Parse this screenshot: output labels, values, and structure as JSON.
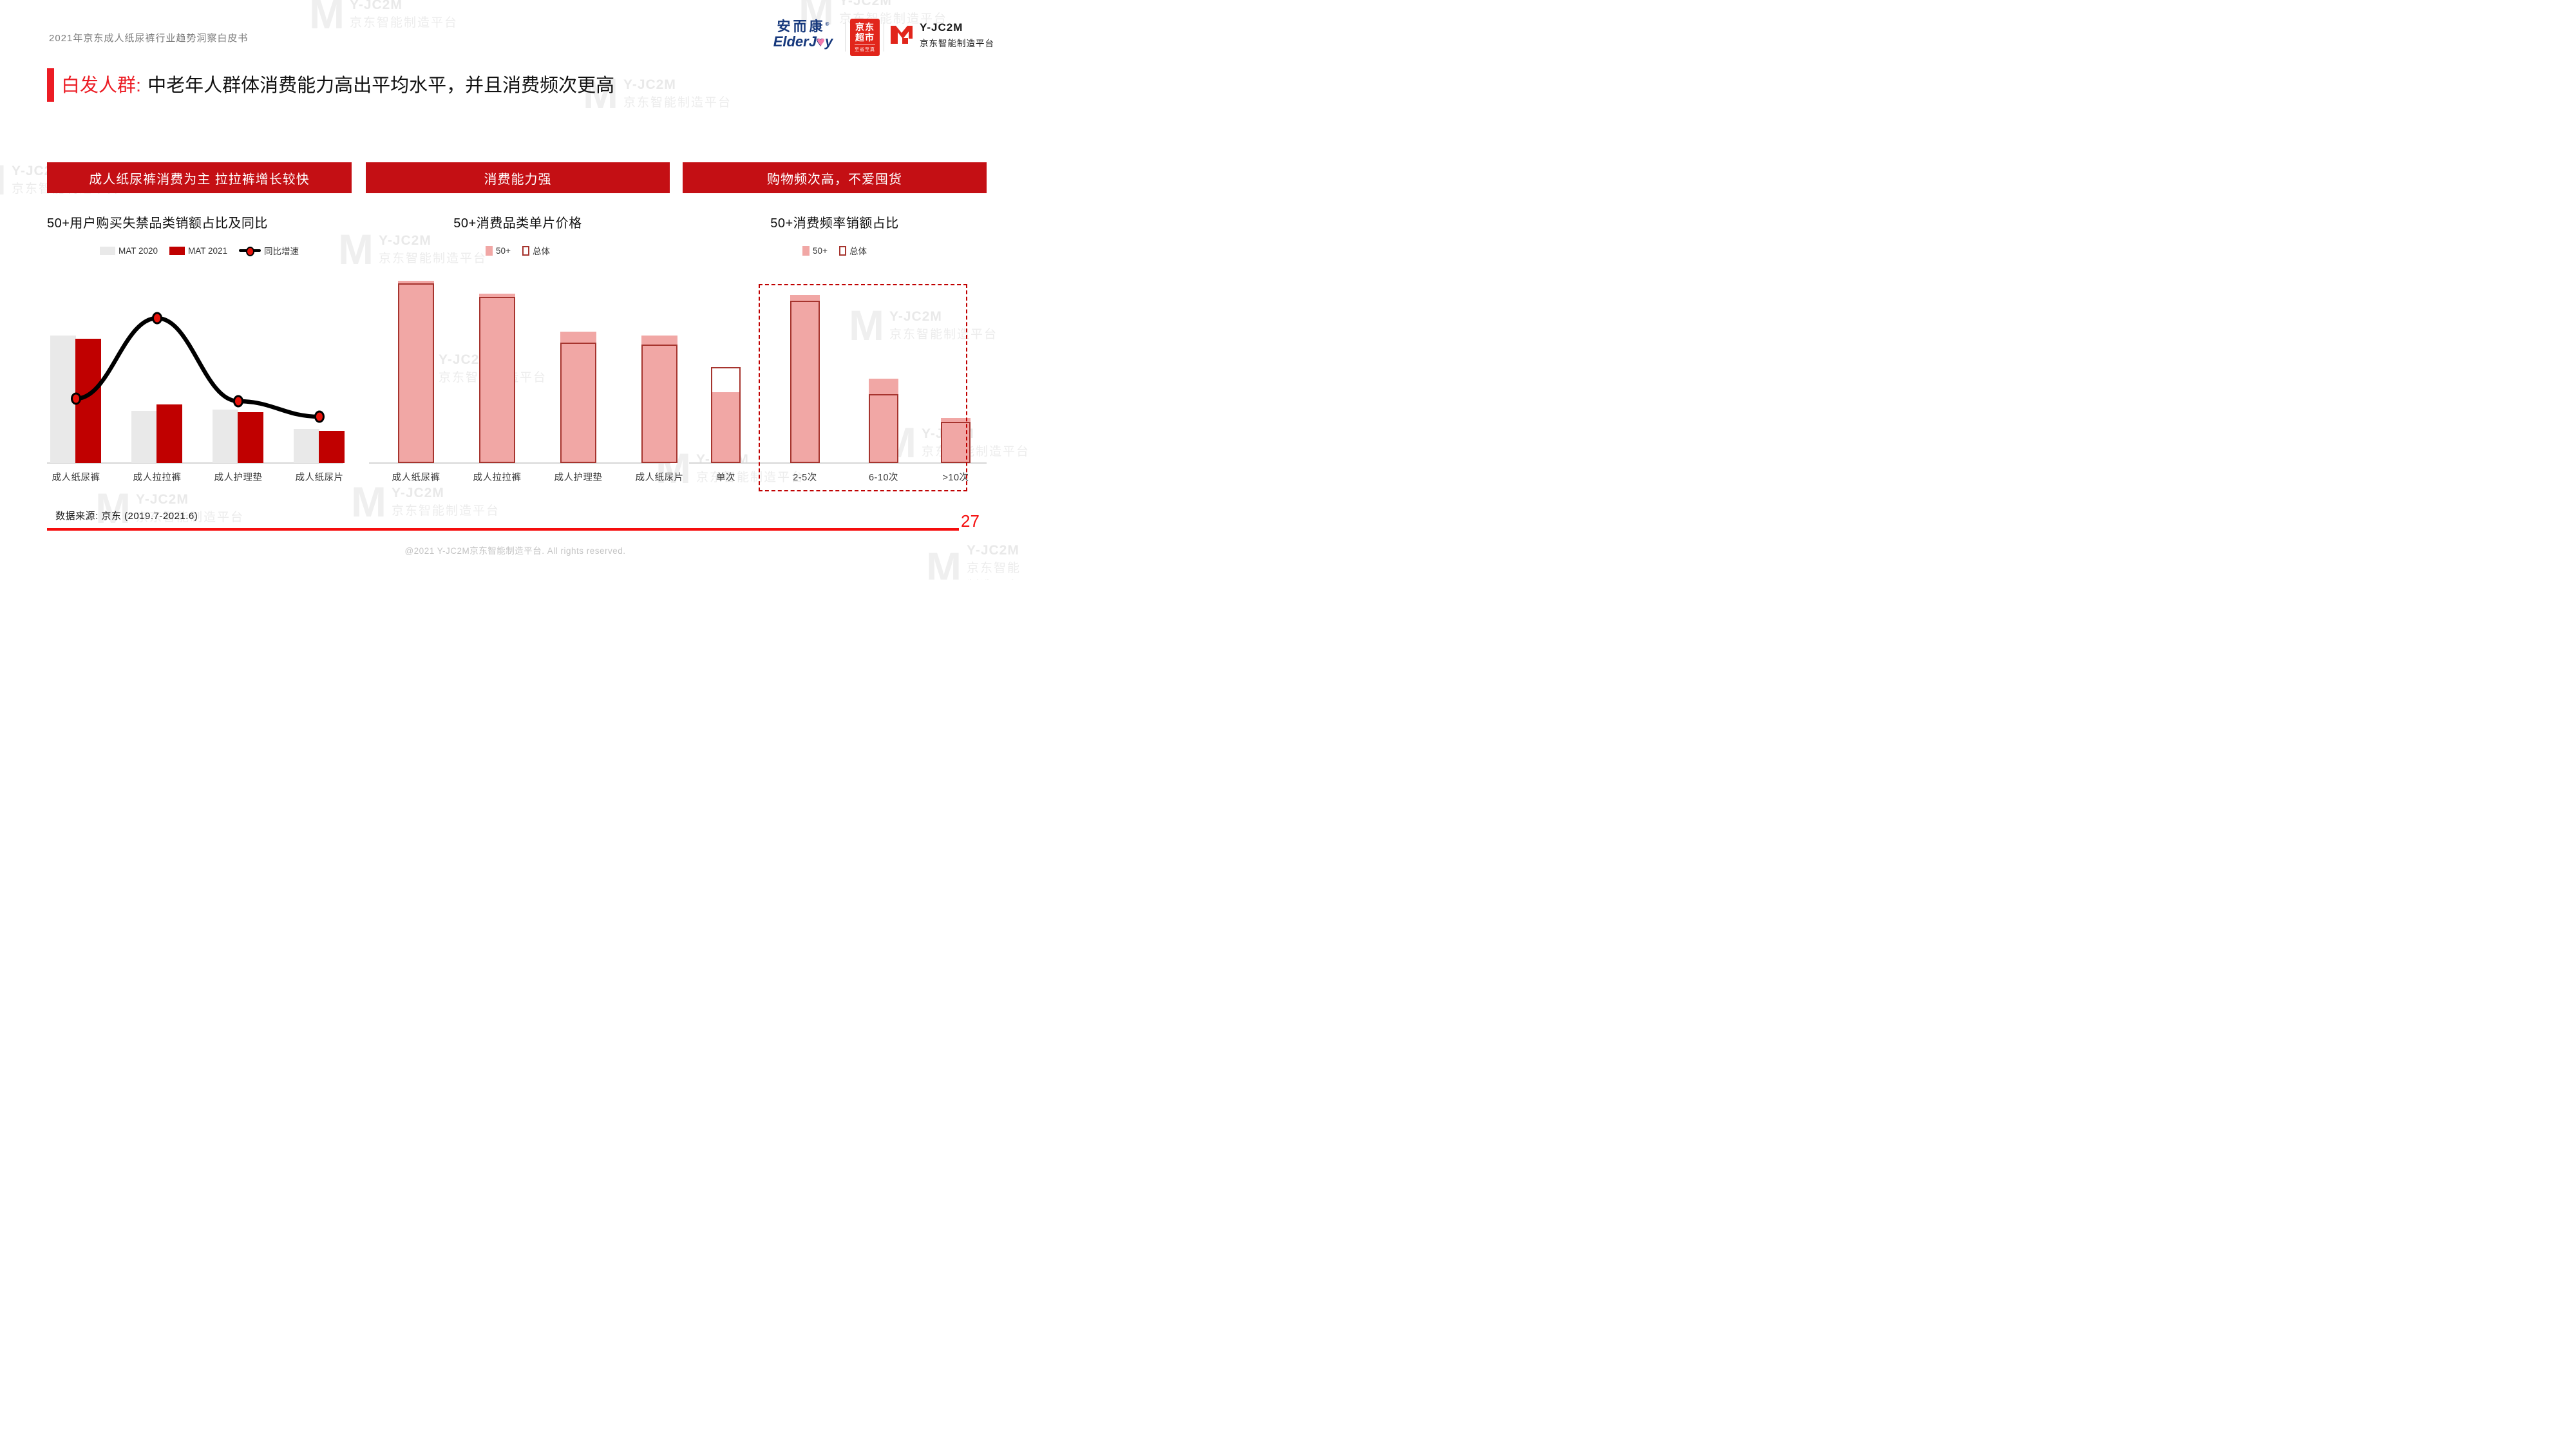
{
  "header": {
    "doc_title": "2021年京东成人纸尿裤行业趋势洞察白皮书",
    "logos": {
      "elderjoy": {
        "cn": "安而康",
        "reg": "®",
        "en_pre": "ElderJ",
        "en_heart": "♥",
        "en_post": "y"
      },
      "jd_market": {
        "line1": "京东",
        "line2": "超市",
        "sub": "至省至真"
      },
      "yjc2m": {
        "name": "Y-JC2M",
        "sub": "京东智能制造平台"
      }
    }
  },
  "headline": {
    "tag": "白发人群:",
    "text": "中老年人群体消费能力高出平均水平，并且消费频次更高"
  },
  "sections": [
    {
      "banner": "成人纸尿裤消费为主 拉拉裤增长较快"
    },
    {
      "banner": "消费能力强"
    },
    {
      "banner": "购物频次高，不爱囤货"
    }
  ],
  "chart_data": [
    {
      "type": "bar",
      "subtype": "grouped bars + smooth growth line",
      "title": "50+用户购买失禁品类销额占比及同比",
      "categories": [
        "成人纸尿裤",
        "成人拉拉裤",
        "成人护理垫",
        "成人纸尿片"
      ],
      "series": [
        {
          "name": "MAT 2020",
          "swatch": "rect",
          "color": "#e9e9e9",
          "values_rel_pct": [
            100,
            41,
            42,
            27
          ]
        },
        {
          "name": "MAT 2021",
          "swatch": "rect",
          "color": "#c00000",
          "values_rel_pct": [
            97.5,
            46,
            40,
            25
          ]
        }
      ],
      "line_series": {
        "name": "同比增速",
        "color": "#000000",
        "marker_color": "#e8130b",
        "values_rel_pct": [
          51,
          114,
          49,
          37
        ]
      },
      "value_axis_labels": "none shown — values are relative heights (% of tallest MAT 2020 bar)",
      "legend_position": "top-center",
      "grid": false
    },
    {
      "type": "bar",
      "subtype": "filled 50+ bars overlaid by outlined 总体 bars",
      "title": "50+消费品类单片价格",
      "categories": [
        "成人纸尿裤",
        "成人拉拉裤",
        "成人护理垫",
        "成人纸尿片"
      ],
      "series": [
        {
          "name": "50+",
          "style": "filled",
          "color": "#f1a7a5",
          "values_rel_pct": [
            100,
            93,
            72,
            70
          ]
        },
        {
          "name": "总体",
          "style": "outline",
          "color": "#a6342e",
          "values_rel_pct": [
            98.5,
            91,
            66,
            65
          ]
        }
      ],
      "value_axis_labels": "none shown — values are relative heights (% of tallest 50+ bar)",
      "legend_position": "top-center",
      "grid": false
    },
    {
      "type": "bar",
      "subtype": "filled 50+ bars overlaid by outlined 总体 bars",
      "title": "50+消费频率销额占比",
      "categories": [
        "单次",
        "2-5次",
        "6-10次",
        ">10次"
      ],
      "series": [
        {
          "name": "50+",
          "style": "filled",
          "color": "#f1a7a5",
          "values_rel_pct": [
            42,
            100,
            50,
            27
          ]
        },
        {
          "name": "总体",
          "style": "outline",
          "color": "#a6342e",
          "values_rel_pct": [
            57,
            96.5,
            41,
            24.5
          ]
        }
      ],
      "annotation": {
        "highlight_box": "dashed red rectangle around 2-5次, 6-10次, >10次"
      },
      "value_axis_labels": "none shown — values are relative heights (% of tallest 50+ bar)",
      "legend_position": "top-center",
      "grid": false
    }
  ],
  "footer": {
    "data_source": "数据来源: 京东 (2019.7-2021.6)",
    "page_number": "27",
    "copyright": "@2021 Y-JC2M京东智能制造平台. All rights reserved."
  },
  "watermark": {
    "brand": "Y-JC2M",
    "sub": "京东智能制造平台"
  },
  "colors": {
    "banner_red": "#c40f14",
    "accent_red": "#ec1c24",
    "footer_line_red": "#f50d0d",
    "bar_red": "#c00000",
    "bar_gray": "#e9e9e9",
    "bar_pink": "#f1a7a5",
    "bar_outline_red": "#a6342e",
    "jd_logo_red": "#e1251b",
    "elderjoy_blue": "#16387c"
  }
}
